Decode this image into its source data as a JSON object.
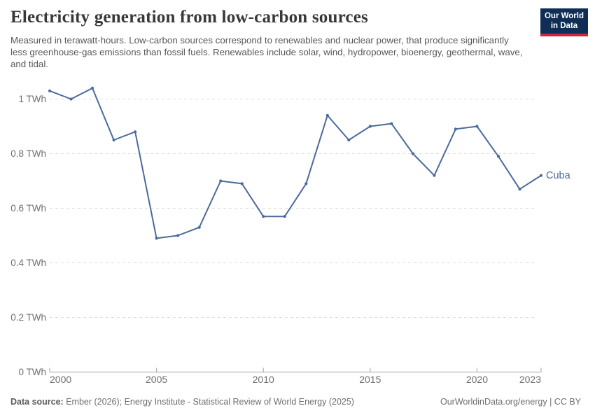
{
  "header": {
    "title": "Electricity generation from low-carbon sources",
    "subtitle": "Measured in terawatt-hours. Low-carbon sources correspond to renewables and nuclear power, that produce significantly less greenhouse-gas emissions than fossil fuels. Renewables include solar, wind, hydropower, bioenergy, geothermal, wave, and tidal."
  },
  "logo": {
    "line1": "Our World",
    "line2": "in Data",
    "bg_color": "#0e2e55",
    "accent_color": "#c9293a"
  },
  "chart_data": {
    "type": "line",
    "title": "Electricity generation from low-carbon sources",
    "unit": "TWh",
    "xlabel": "",
    "ylabel": "TWh",
    "xlim": [
      2000,
      2023
    ],
    "ylim": [
      0,
      1.05
    ],
    "grid": "horizontal-dashed",
    "legend_position": "end-of-line-label",
    "x": [
      2000,
      2001,
      2002,
      2003,
      2004,
      2005,
      2006,
      2007,
      2008,
      2009,
      2010,
      2011,
      2012,
      2013,
      2014,
      2015,
      2016,
      2017,
      2018,
      2019,
      2020,
      2021,
      2022,
      2023
    ],
    "series": [
      {
        "name": "Cuba",
        "color": "#4C6A9C",
        "values": [
          1.03,
          1.0,
          1.04,
          0.85,
          0.88,
          0.49,
          0.5,
          0.53,
          0.7,
          0.69,
          0.57,
          0.57,
          0.69,
          0.94,
          0.85,
          0.9,
          0.91,
          0.8,
          0.72,
          0.89,
          0.9,
          0.79,
          0.67,
          0.72
        ]
      }
    ],
    "x_ticks": [
      {
        "value": 2000,
        "label": "2000"
      },
      {
        "value": 2005,
        "label": "2005"
      },
      {
        "value": 2010,
        "label": "2010"
      },
      {
        "value": 2015,
        "label": "2015"
      },
      {
        "value": 2020,
        "label": "2020"
      },
      {
        "value": 2023,
        "label": "2023"
      }
    ],
    "y_ticks": [
      {
        "value": 0,
        "label": "0 TWh"
      },
      {
        "value": 0.2,
        "label": "0.2 TWh"
      },
      {
        "value": 0.4,
        "label": "0.4 TWh"
      },
      {
        "value": 0.6,
        "label": "0.6 TWh"
      },
      {
        "value": 0.8,
        "label": "0.8 TWh"
      },
      {
        "value": 1,
        "label": "1 TWh"
      }
    ]
  },
  "footer": {
    "source_label": "Data source:",
    "source_text": " Ember (2026); Energy Institute - Statistical Review of World Energy (2025)",
    "credit": "OurWorldinData.org/energy | CC BY"
  },
  "colors": {
    "line": "#4C6A9C",
    "grid": "#dddddd",
    "axis": "#a3a3a3",
    "tick_label": "#6e6e6e",
    "entity_label": "#4C6A9C"
  }
}
